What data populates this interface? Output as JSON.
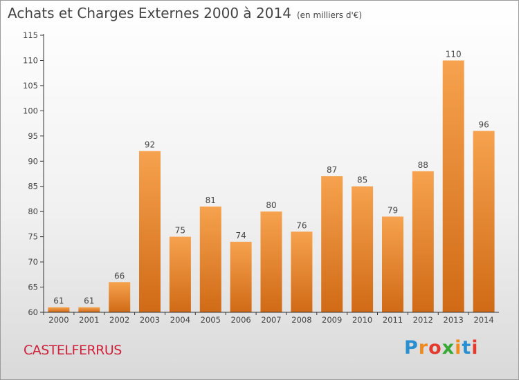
{
  "header": {
    "title": "Achats et Charges Externes 2000 à 2014",
    "unit": "(en milliers d'€)"
  },
  "footer": {
    "town": "CASTELFERRUS",
    "logo_text": "Proxiti",
    "logo_colors": [
      "#2a8fd1",
      "#f08a1c",
      "#e23b2e",
      "#39a935",
      "#f08a1c",
      "#2a8fd1",
      "#e23b2e"
    ]
  },
  "colors": {
    "bar_top": "#f6a24e",
    "bar_bottom": "#d06a16",
    "axis": "#333333",
    "text": "#444444"
  },
  "chart_data": {
    "type": "bar",
    "title": "Achats et Charges Externes 2000 à 2014",
    "xlabel": "",
    "ylabel": "",
    "categories": [
      "2000",
      "2001",
      "2002",
      "2003",
      "2004",
      "2005",
      "2006",
      "2007",
      "2008",
      "2009",
      "2010",
      "2011",
      "2012",
      "2013",
      "2014"
    ],
    "values": [
      61,
      61,
      66,
      92,
      75,
      81,
      74,
      80,
      76,
      87,
      85,
      79,
      88,
      110,
      96
    ],
    "ylim": [
      60,
      115
    ],
    "yticks": [
      60,
      65,
      70,
      75,
      80,
      85,
      90,
      95,
      100,
      105,
      110,
      115
    ],
    "grid": false,
    "data_labels": true
  }
}
